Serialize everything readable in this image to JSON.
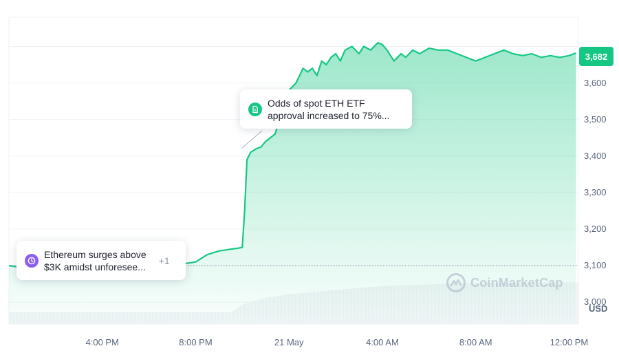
{
  "chart_data": {
    "type": "area",
    "title": "",
    "xlabel": "",
    "ylabel": "",
    "y_unit": "USD",
    "ylim": [
      2940,
      3780
    ],
    "y_ticks": [
      3000,
      3100,
      3200,
      3300,
      3400,
      3500,
      3600
    ],
    "y_tick_labels": [
      "3,000",
      "3,100",
      "3,200",
      "3,300",
      "3,400",
      "3,500",
      "3,600"
    ],
    "x_range": [
      12.0,
      36.4
    ],
    "x_ticks": [
      16,
      20,
      24,
      28,
      32,
      36
    ],
    "x_tick_labels": [
      "4:00 PM",
      "8:00 PM",
      "21 May",
      "4:00 AM",
      "8:00 AM",
      "12:00 PM"
    ],
    "reference_line": 3100,
    "current_price": 3682,
    "current_price_label": "3,682",
    "grid": true,
    "series": [
      {
        "x": [
          12.0,
          12.5,
          13.0,
          13.5,
          14.0,
          14.5,
          15.0,
          15.5,
          16.0,
          16.5,
          17.0,
          17.5,
          18.0,
          18.5,
          19.0,
          19.5,
          20.0,
          20.5,
          21.0,
          21.5,
          21.85,
          22.0,
          22.1,
          22.2,
          22.35,
          22.6,
          22.8,
          23.0,
          23.2,
          23.4,
          23.6,
          23.8,
          24.0,
          24.3,
          24.6,
          24.8,
          25.0,
          25.2,
          25.4,
          25.6,
          25.8,
          26.0,
          26.2,
          26.4,
          26.7,
          27.0,
          27.2,
          27.5,
          27.8,
          28.0,
          28.2,
          28.5,
          28.8,
          29.0,
          29.3,
          29.6,
          30.0,
          30.4,
          30.8,
          31.2,
          31.6,
          32.0,
          32.4,
          32.8,
          33.2,
          33.6,
          34.0,
          34.4,
          34.8,
          35.2,
          35.6,
          36.0,
          36.3
        ],
        "y": [
          3100,
          3095,
          3092,
          3090,
          3088,
          3085,
          3087,
          3090,
          3093,
          3095,
          3096,
          3098,
          3100,
          3102,
          3104,
          3105,
          3110,
          3130,
          3140,
          3145,
          3148,
          3150,
          3250,
          3390,
          3410,
          3420,
          3425,
          3440,
          3450,
          3460,
          3500,
          3540,
          3580,
          3600,
          3640,
          3630,
          3640,
          3620,
          3660,
          3650,
          3670,
          3680,
          3660,
          3690,
          3700,
          3680,
          3700,
          3690,
          3710,
          3705,
          3690,
          3660,
          3680,
          3670,
          3690,
          3680,
          3695,
          3690,
          3690,
          3680,
          3670,
          3660,
          3670,
          3680,
          3690,
          3680,
          3675,
          3680,
          3670,
          3675,
          3670,
          3675,
          3682
        ]
      }
    ],
    "volume": {
      "x": [
        12.0,
        21.5,
        22.0,
        23.0,
        24.0,
        26.0,
        28.0,
        32.0,
        36.4
      ],
      "v": [
        0.25,
        0.25,
        0.42,
        0.55,
        0.63,
        0.72,
        0.8,
        0.87,
        0.88
      ]
    },
    "annotations": [
      {
        "icon": "clock-icon",
        "text_line1": "Ethereum surges above",
        "text_line2": "$3K amidst unforesee...",
        "more": "+1",
        "color": "#8b5cf6"
      },
      {
        "icon": "document-icon",
        "text_line1": "Odds of spot ETH ETF",
        "text_line2": "approval increased to 75%...",
        "color": "#16c784"
      }
    ],
    "colors": {
      "line": "#16c784",
      "reference": "#58667e",
      "volume": "#eff2f5"
    }
  },
  "watermark": {
    "text": "CoinMarketCap",
    "icon": "coinmarketcap-logo-icon"
  }
}
